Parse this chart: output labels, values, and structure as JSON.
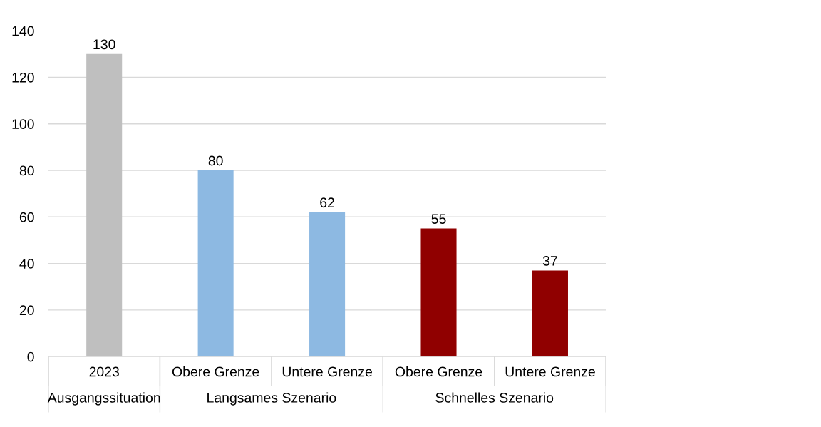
{
  "chart_data": {
    "type": "bar",
    "categories": [
      "2023",
      "Obere Grenze",
      "Untere Grenze",
      "Obere Grenze",
      "Untere Grenze"
    ],
    "values": [
      130,
      80,
      62,
      55,
      37
    ],
    "colors": [
      "#bfbfbf",
      "#8db9e2",
      "#8db9e2",
      "#900000",
      "#900000"
    ],
    "ylim": [
      0,
      140
    ],
    "yticks": [
      0,
      20,
      40,
      60,
      80,
      100,
      120,
      140
    ],
    "grid": "y",
    "data_labels": true,
    "annotations": [
      "Ausgangssituation",
      "Langsames Szenario",
      "Schnelles Szenario"
    ]
  }
}
